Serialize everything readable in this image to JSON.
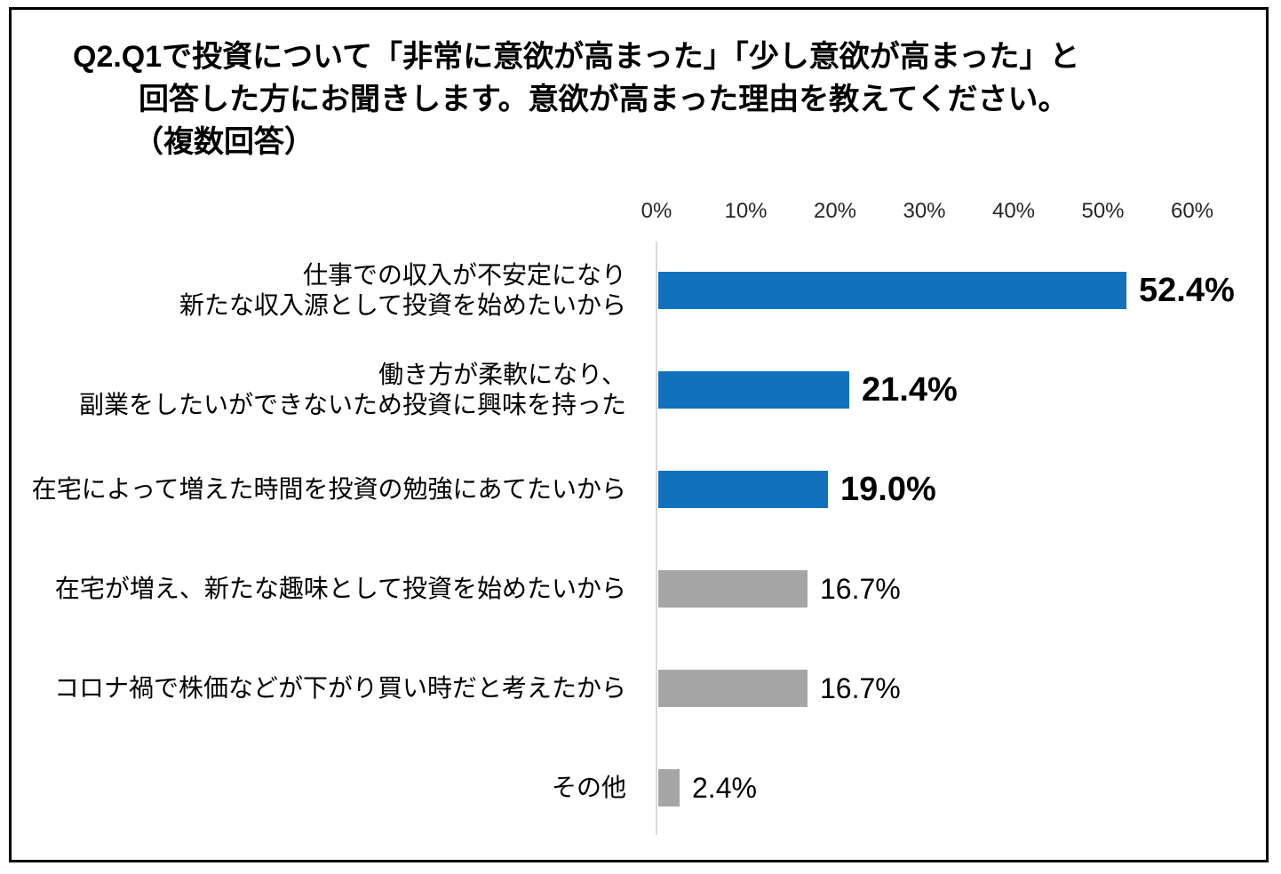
{
  "title": {
    "lines": [
      "Q2.Q1で投資について「非常に意欲が高まった」「少し意欲が高まった」と",
      "回答した方にお聞きします。意欲が高まった理由を教えてください。",
      "（複数回答）"
    ]
  },
  "chart_data": {
    "type": "bar",
    "orientation": "horizontal",
    "title": "Q2.Q1で投資について「非常に意欲が高まった」「少し意欲が高まった」と回答した方にお聞きします。意欲が高まった理由を教えてください。（複数回答）",
    "xlabel": "",
    "ylabel": "",
    "xlim": [
      0,
      60
    ],
    "x_tick_labels": [
      "0%",
      "10%",
      "20%",
      "30%",
      "40%",
      "50%",
      "60%"
    ],
    "grid": false,
    "legend": false,
    "categories": [
      "仕事での収入が不安定になり 新たな収入源として投資を始めたいから",
      "働き方が柔軟になり、 副業をしたいができないため投資に興味を持った",
      "在宅によって増えた時間を投資の勉強にあてたいから",
      "在宅が増え、新たな趣味として投資を始めたいから",
      "コロナ禍で株価などが下がり買い時だと考えたから",
      "その他"
    ],
    "values": [
      52.4,
      21.4,
      19.0,
      16.7,
      16.7,
      2.4
    ],
    "rows": [
      {
        "label_lines": [
          "仕事での収入が不安定になり",
          "新たな収入源として投資を始めたいから"
        ],
        "value": 52.4,
        "value_label": "52.4%",
        "highlighted": true
      },
      {
        "label_lines": [
          "働き方が柔軟になり、",
          "副業をしたいができないため投資に興味を持った"
        ],
        "value": 21.4,
        "value_label": "21.4%",
        "highlighted": true
      },
      {
        "label_lines": [
          "在宅によって増えた時間を投資の勉強にあてたいから"
        ],
        "value": 19.0,
        "value_label": "19.0%",
        "highlighted": true
      },
      {
        "label_lines": [
          "在宅が増え、新たな趣味として投資を始めたいから"
        ],
        "value": 16.7,
        "value_label": "16.7%",
        "highlighted": false
      },
      {
        "label_lines": [
          "コロナ禍で株価などが下がり買い時だと考えたから"
        ],
        "value": 16.7,
        "value_label": "16.7%",
        "highlighted": false
      },
      {
        "label_lines": [
          "その他"
        ],
        "value": 2.4,
        "value_label": "2.4%",
        "highlighted": false
      }
    ],
    "colors": {
      "highlighted_bar": "#1171bc",
      "muted_bar": "#a6a6a6",
      "axis_line": "#d9d9d9",
      "text": "#000000",
      "frame_border": "#000000"
    }
  }
}
